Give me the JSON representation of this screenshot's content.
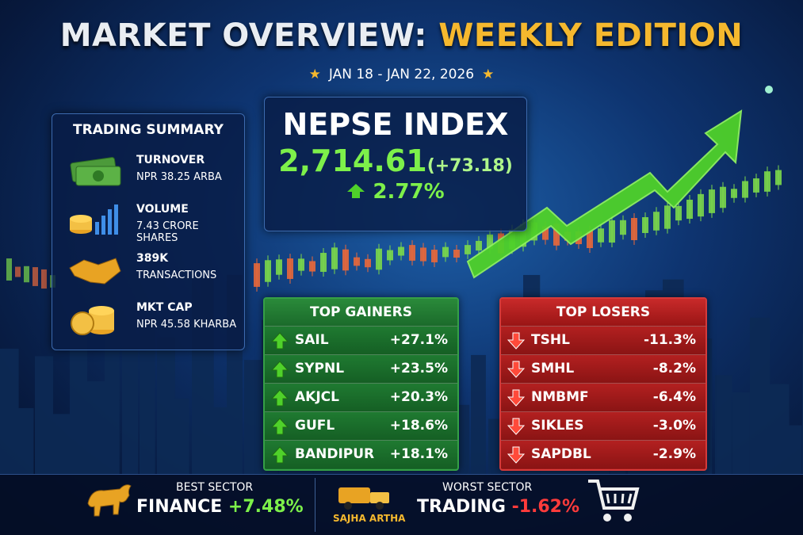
{
  "header": {
    "title": "MARKET OVERVIEW:",
    "edition": "WEEKLY EDITION",
    "date_range": "JAN 18 - JAN 22, 2026"
  },
  "trading_summary": {
    "title": "TRADING SUMMARY",
    "items": [
      {
        "label": "TURNOVER",
        "value": "NPR 38.25 ARBA"
      },
      {
        "label": "VOLUME",
        "value": "7.43 CRORE SHARES"
      },
      {
        "label": "389K",
        "value": "TRANSACTIONS"
      },
      {
        "label": "MKT CAP",
        "value": "NPR 45.58 KHARBA"
      }
    ]
  },
  "index": {
    "name": "NEPSE INDEX",
    "value": "2,714.61",
    "change": "(+73.18)",
    "percent": "2.77%"
  },
  "top_gainers": {
    "title": "TOP GAINERS",
    "rows": [
      [
        "SAIL",
        "+27.1%"
      ],
      [
        "SYPNL",
        "+23.5%"
      ],
      [
        "AKJCL",
        "+20.3%"
      ],
      [
        "GUFL",
        "+18.6%"
      ],
      [
        "BANDIPUR",
        "+18.1%"
      ]
    ]
  },
  "top_losers": {
    "title": "TOP LOSERS",
    "rows": [
      [
        "TSHL",
        "-11.3%"
      ],
      [
        "SMHL",
        "-8.2%"
      ],
      [
        "NMBMF",
        "-6.4%"
      ],
      [
        "SIKLES",
        "-3.0%"
      ],
      [
        "SAPDBL",
        "-2.9%"
      ]
    ]
  },
  "sectors": {
    "best": {
      "caption": "BEST SECTOR",
      "name": "FINANCE",
      "change": "+7.48%"
    },
    "worst": {
      "caption": "WORST SECTOR",
      "name": "TRADING",
      "change": "-1.62%"
    }
  },
  "brand": "SAJHA ARTHA"
}
